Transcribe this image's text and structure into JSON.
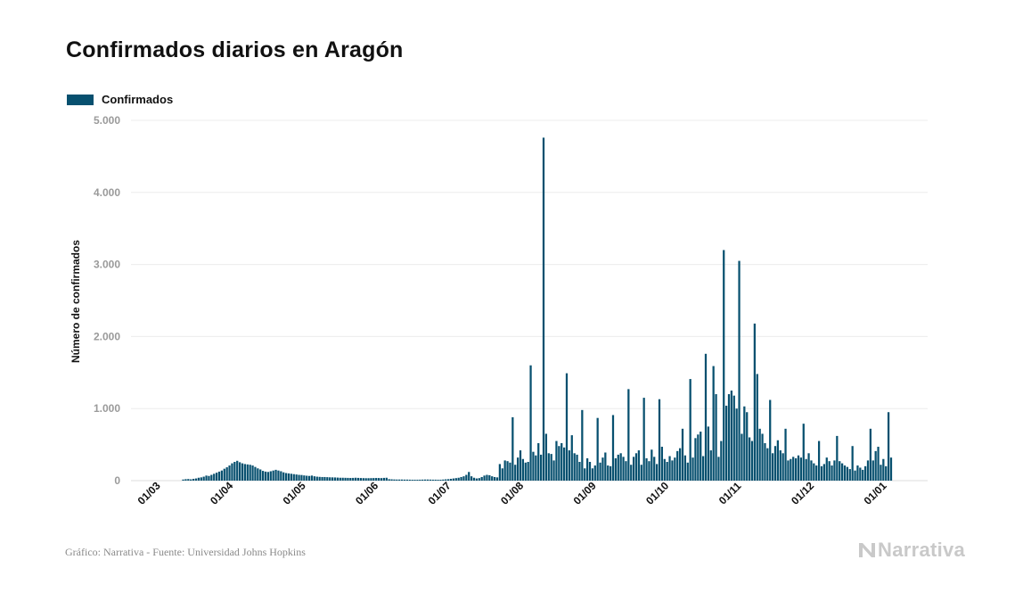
{
  "header": {
    "title": "Confirmados diarios en Aragón"
  },
  "legend": {
    "label": "Confirmados",
    "color": "#07506f"
  },
  "footer": {
    "source": "Gráfico: Narrativa - Fuente: Universidad Johns Hopkins",
    "brand": "Narrativa",
    "brand_icon": "narrativa-n-logo-icon"
  },
  "chart_data": {
    "type": "bar",
    "title": "Confirmados diarios en Aragón",
    "xlabel": "",
    "ylabel": "Número de confirmados",
    "ylim": [
      0,
      5000
    ],
    "yticks": [
      0,
      1000,
      2000,
      3000,
      4000,
      5000
    ],
    "ytick_labels": [
      "0",
      "1.000",
      "2.000",
      "3.000",
      "4.000",
      "5.000"
    ],
    "xtick_labels": [
      "01/03",
      "01/04",
      "01/05",
      "01/06",
      "01/07",
      "01/08",
      "01/09",
      "01/10",
      "01/11",
      "01/12",
      "01/01"
    ],
    "grid": true,
    "legend_position": "top-left",
    "series": [
      {
        "name": "Confirmados",
        "color": "#07506f",
        "values": [
          0,
          0,
          0,
          0,
          0,
          0,
          0,
          0,
          0,
          0,
          0,
          0,
          0,
          15,
          20,
          22,
          18,
          25,
          30,
          40,
          45,
          55,
          70,
          65,
          80,
          95,
          110,
          125,
          140,
          165,
          185,
          210,
          240,
          260,
          275,
          255,
          240,
          230,
          225,
          220,
          210,
          190,
          170,
          155,
          135,
          125,
          120,
          130,
          140,
          150,
          140,
          130,
          115,
          105,
          100,
          95,
          90,
          85,
          80,
          78,
          72,
          68,
          65,
          70,
          60,
          55,
          52,
          50,
          50,
          48,
          46,
          45,
          44,
          42,
          40,
          40,
          39,
          38,
          37,
          38,
          40,
          38,
          36,
          35,
          34,
          34,
          35,
          36,
          37,
          36,
          35,
          38,
          40,
          20,
          18,
          16,
          15,
          15,
          15,
          14,
          14,
          13,
          12,
          12,
          12,
          13,
          14,
          15,
          15,
          14,
          13,
          13,
          12,
          12,
          15,
          18,
          20,
          25,
          30,
          35,
          40,
          50,
          60,
          80,
          120,
          60,
          40,
          30,
          35,
          50,
          70,
          80,
          75,
          60,
          50,
          45,
          230,
          170,
          280,
          270,
          250,
          880,
          220,
          320,
          420,
          300,
          250,
          260,
          1600,
          400,
          350,
          520,
          360,
          4760,
          650,
          380,
          370,
          280,
          550,
          480,
          520,
          460,
          1490,
          420,
          630,
          380,
          360,
          260,
          980,
          170,
          310,
          260,
          170,
          210,
          870,
          250,
          320,
          390,
          210,
          200,
          910,
          310,
          360,
          380,
          330,
          270,
          1270,
          220,
          330,
          380,
          420,
          220,
          1150,
          310,
          270,
          430,
          330,
          230,
          1130,
          470,
          300,
          260,
          340,
          280,
          320,
          410,
          450,
          720,
          350,
          250,
          1410,
          320,
          590,
          640,
          680,
          340,
          1760,
          750,
          420,
          1590,
          1200,
          330,
          550,
          3200,
          1040,
          1200,
          1250,
          1180,
          1000,
          3050,
          650,
          1030,
          950,
          600,
          550,
          2180,
          1480,
          720,
          650,
          520,
          450,
          1120,
          380,
          480,
          560,
          420,
          380,
          720,
          280,
          300,
          330,
          310,
          350,
          320,
          790,
          300,
          380,
          280,
          240,
          210,
          550,
          200,
          230,
          320,
          270,
          210,
          280,
          620,
          270,
          240,
          210,
          190,
          160,
          480,
          140,
          210,
          180,
          150,
          200,
          280,
          720,
          280,
          410,
          470,
          220,
          300,
          200,
          950,
          320
        ]
      }
    ]
  }
}
